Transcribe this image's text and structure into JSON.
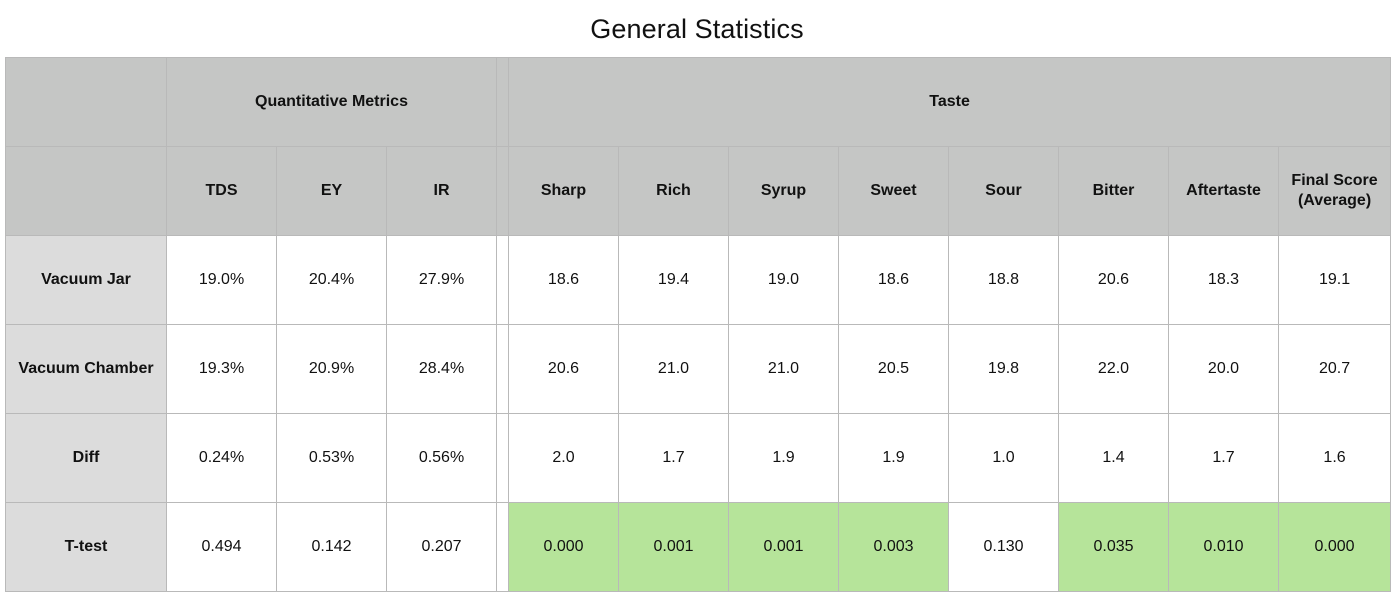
{
  "title": "General Statistics",
  "groups": {
    "quantitative": "Quantitative Metrics",
    "taste": "Taste"
  },
  "columns": {
    "tds": "TDS",
    "ey": "EY",
    "ir": "IR",
    "sharp": "Sharp",
    "rich": "Rich",
    "syrup": "Syrup",
    "sweet": "Sweet",
    "sour": "Sour",
    "bitter": "Bitter",
    "aftertaste": "Aftertaste",
    "final_line1": "Final Score",
    "final_line2": "(Average)"
  },
  "rows": [
    {
      "label": "Vacuum Jar",
      "tds": "19.0%",
      "ey": "20.4%",
      "ir": "27.9%",
      "sharp": "18.6",
      "rich": "19.4",
      "syrup": "19.0",
      "sweet": "18.6",
      "sour": "18.8",
      "bitter": "20.6",
      "aftertaste": "18.3",
      "final": "19.1"
    },
    {
      "label": "Vacuum Chamber",
      "tds": "19.3%",
      "ey": "20.9%",
      "ir": "28.4%",
      "sharp": "20.6",
      "rich": "21.0",
      "syrup": "21.0",
      "sweet": "20.5",
      "sour": "19.8",
      "bitter": "22.0",
      "aftertaste": "20.0",
      "final": "20.7"
    },
    {
      "label": "Diff",
      "tds": "0.24%",
      "ey": "0.53%",
      "ir": "0.56%",
      "sharp": "2.0",
      "rich": "1.7",
      "syrup": "1.9",
      "sweet": "1.9",
      "sour": "1.0",
      "bitter": "1.4",
      "aftertaste": "1.7",
      "final": "1.6"
    },
    {
      "label": "T-test",
      "tds": "0.494",
      "ey": "0.142",
      "ir": "0.207",
      "sharp": "0.000",
      "rich": "0.001",
      "syrup": "0.001",
      "sweet": "0.003",
      "sour": "0.130",
      "bitter": "0.035",
      "aftertaste": "0.010",
      "final": "0.000"
    }
  ],
  "colors": {
    "header_bg": "#c5c6c5",
    "label_bg": "#dcdcdc",
    "significant_bg": "#b6e49a"
  }
}
